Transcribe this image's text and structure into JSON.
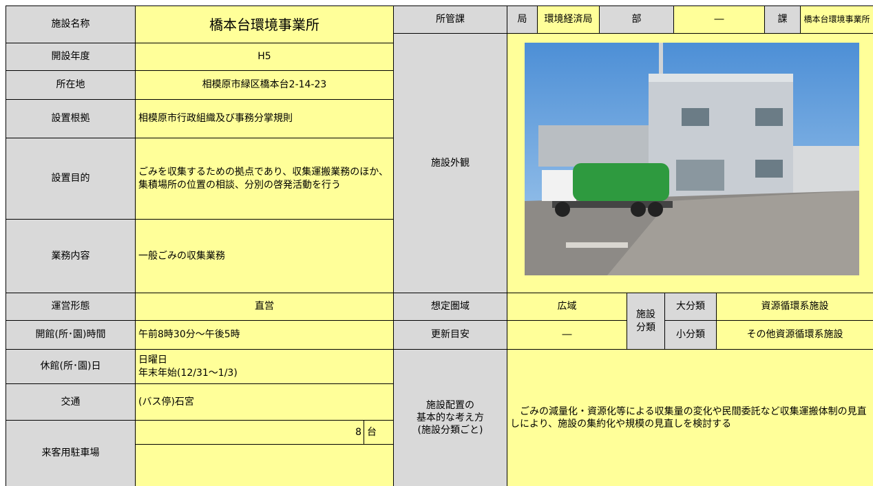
{
  "left": [
    {
      "label": "施設名称",
      "value": "橋本台環境事業所"
    },
    {
      "label": "開設年度",
      "value": "H5"
    },
    {
      "label": "所在地",
      "value": "相模原市緑区橋本台2-14-23"
    },
    {
      "label": "設置根拠",
      "value": "相模原市行政組織及び事務分掌規則"
    },
    {
      "label": "設置目的",
      "value": "ごみを収集するための拠点であり、収集運搬業務のほか、集積場所の位置の相談、分別の啓発活動を行う"
    },
    {
      "label": "業務内容",
      "value": "一般ごみの収集業務"
    },
    {
      "label": "運営形態",
      "value": "直営"
    },
    {
      "label": "開館(所･園)時間",
      "value": "午前8時30分～午後5時"
    },
    {
      "label": "休館(所･園)日",
      "value": [
        "日曜日",
        "年末年始(12/31～1/3)"
      ]
    },
    {
      "label": "交通",
      "value": "(バス停)石宮"
    },
    {
      "label": "来客用駐車場",
      "value": "8",
      "unit": "台"
    }
  ],
  "department": {
    "label": "所管課",
    "bureau_label": "局",
    "bureau": "環境経済局",
    "division_label": "部",
    "division": "―",
    "section_label": "課",
    "section": "橋本台環境事業所"
  },
  "exterior_label": "施設外観",
  "area": {
    "label": "想定圏域",
    "value": "広域"
  },
  "renewal": {
    "label": "更新目安",
    "value": "―"
  },
  "classification": {
    "label": [
      "施設",
      "分類"
    ],
    "major_label": "大分類",
    "major": "資源循環系施設",
    "minor_label": "小分類",
    "minor": "その他資源循環系施設"
  },
  "policy": {
    "label": [
      "施設配置の",
      "基本的な考え方",
      "(施設分類ごと)"
    ],
    "text": "ごみの減量化・資源化等による収集量の変化や民間委託など収集運搬体制の見直しにより、施設の集約化や規模の見直しを検討する"
  }
}
